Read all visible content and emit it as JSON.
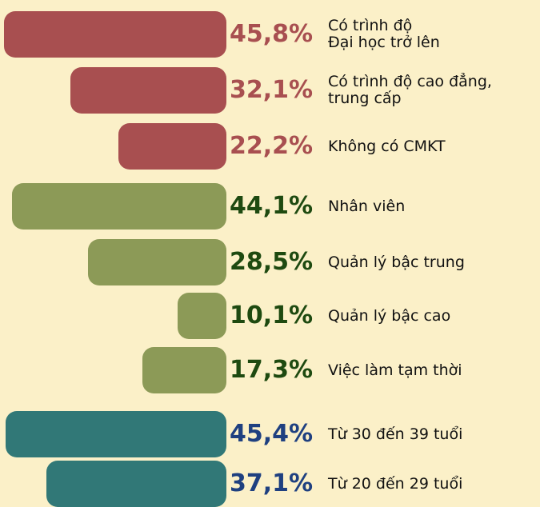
{
  "chart_data": {
    "type": "bar",
    "categories": [
      "Có trình độ\nĐại học trở lên",
      "Có trình độ cao đẳng,\ntrung cấp",
      "Không có CMKT",
      "Nhân viên",
      "Quản lý bậc trung",
      "Quản lý bậc cao",
      "Việc làm tạm thời",
      "Từ 30 đến 39 tuổi",
      "Từ 20 đến 29 tuổi"
    ],
    "values": [
      45.8,
      32.1,
      22.2,
      44.1,
      28.5,
      10.1,
      17.3,
      45.4,
      37.1
    ],
    "value_labels": [
      "45,8%",
      "32,1%",
      "22,2%",
      "44,1%",
      "28,5%",
      "10,1%",
      "17,3%",
      "45,4%",
      "37,1%"
    ],
    "colors": [
      "#a84f50",
      "#a84f50",
      "#a84f50",
      "#8c9a57",
      "#8c9a57",
      "#8c9a57",
      "#8c9a57",
      "#317877",
      "#317877"
    ],
    "label_colors": [
      "#a84f50",
      "#a84f50",
      "#a84f50",
      "#1e4a10",
      "#1e4a10",
      "#1e4a10",
      "#1e4a10",
      "#1f4080",
      "#1f4080"
    ]
  }
}
